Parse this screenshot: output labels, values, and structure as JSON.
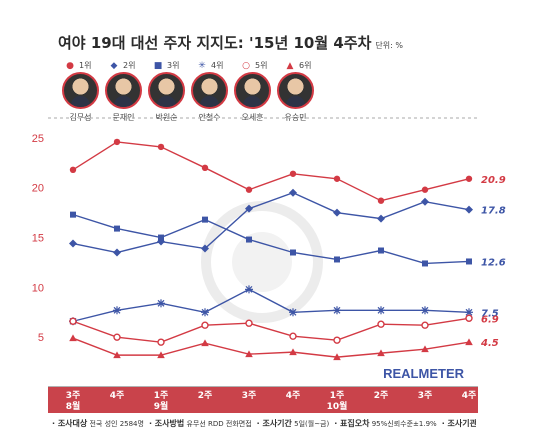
{
  "header": {
    "title": "여야 19대 대선 주자 지지도: '15년 10월 4주차",
    "unit": "단위: %"
  },
  "legend": [
    {
      "rank": "1위",
      "marker": "circle",
      "color": "#d33a44"
    },
    {
      "rank": "2위",
      "marker": "diamond",
      "color": "#3d55a6"
    },
    {
      "rank": "3위",
      "marker": "square",
      "color": "#3d55a6"
    },
    {
      "rank": "4위",
      "marker": "asterisk",
      "color": "#3d55a6"
    },
    {
      "rank": "5위",
      "marker": "open-circle",
      "color": "#d33a44"
    },
    {
      "rank": "6위",
      "marker": "triangle",
      "color": "#d33a44"
    }
  ],
  "people": [
    "김무성",
    "문재인",
    "박원순",
    "안철수",
    "오세훈",
    "유승민"
  ],
  "footer": {
    "items": [
      {
        "label": "조사대상",
        "value": "전국 성인 2584명"
      },
      {
        "label": "조사방법",
        "value": "유무선 RDD 전화면접"
      },
      {
        "label": "조사기간",
        "value": "5일(월~금)"
      },
      {
        "label": "표집오차",
        "value": "95%신뢰수준±1.9%"
      },
      {
        "label": "조사기관",
        "value": "리얼미터"
      }
    ]
  },
  "watermark": "REALMETER",
  "chart_data": {
    "type": "line",
    "x_ticks": [
      {
        "week": "3주",
        "month": "8월"
      },
      {
        "week": "4주",
        "month": ""
      },
      {
        "week": "1주",
        "month": "9월"
      },
      {
        "week": "2주",
        "month": ""
      },
      {
        "week": "3주",
        "month": ""
      },
      {
        "week": "4주",
        "month": ""
      },
      {
        "week": "1주",
        "month": "10월"
      },
      {
        "week": "2주",
        "month": ""
      },
      {
        "week": "3주",
        "month": ""
      },
      {
        "week": "4주",
        "month": ""
      }
    ],
    "ylim": [
      0,
      27
    ],
    "y_ticks": [
      5,
      10,
      15,
      20,
      25
    ],
    "grid": false,
    "series": [
      {
        "marker": "circle",
        "color": "#d33a44",
        "values": [
          21.8,
          24.6,
          24.1,
          22.0,
          19.8,
          21.4,
          20.9,
          18.7,
          19.8,
          20.9
        ],
        "end_label": "20.9"
      },
      {
        "marker": "diamond",
        "color": "#3d55a6",
        "values": [
          14.4,
          13.5,
          14.6,
          13.9,
          17.9,
          19.5,
          17.5,
          16.9,
          18.6,
          17.8
        ],
        "end_label": "17.8"
      },
      {
        "marker": "square",
        "color": "#3d55a6",
        "values": [
          17.3,
          15.9,
          15.0,
          16.8,
          14.8,
          13.5,
          12.8,
          13.7,
          12.4,
          12.6
        ],
        "end_label": "12.6"
      },
      {
        "marker": "asterisk",
        "color": "#3d55a6",
        "values": [
          6.6,
          7.7,
          8.4,
          7.5,
          9.8,
          7.5,
          7.7,
          7.7,
          7.7,
          7.5
        ],
        "end_label": "7.5"
      },
      {
        "marker": "open-circle",
        "color": "#d33a44",
        "values": [
          6.6,
          5.0,
          4.5,
          6.2,
          6.4,
          5.1,
          4.7,
          6.3,
          6.2,
          6.9
        ],
        "end_label": "6.9"
      },
      {
        "marker": "triangle",
        "color": "#d33a44",
        "values": [
          4.9,
          3.2,
          3.2,
          4.4,
          3.3,
          3.5,
          3.0,
          3.4,
          3.8,
          4.5
        ],
        "end_label": "4.5"
      }
    ]
  }
}
